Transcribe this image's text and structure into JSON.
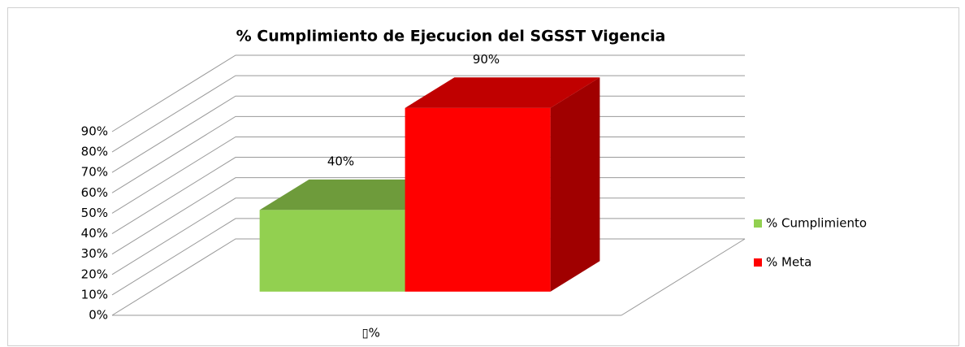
{
  "chart_data": {
    "type": "bar3d",
    "title": "% Cumplimiento de Ejecucion del SGSST Vigencia",
    "categories": [
      "▯%"
    ],
    "series": [
      {
        "name": "% Cumplimiento",
        "color": "#92d050",
        "top_color": "#6e9b3b",
        "side_color": "#5f8a30",
        "values": [
          40
        ],
        "value_labels": [
          "40%"
        ]
      },
      {
        "name": "% Meta",
        "color": "#ff0000",
        "top_color": "#c00000",
        "side_color": "#a00000",
        "values": [
          90
        ],
        "value_labels": [
          "90%"
        ]
      }
    ],
    "ylim": [
      0,
      90
    ],
    "yticks": [
      {
        "value": 0,
        "label": "0%"
      },
      {
        "value": 10,
        "label": "10%"
      },
      {
        "value": 20,
        "label": "20%"
      },
      {
        "value": 30,
        "label": "30%"
      },
      {
        "value": 40,
        "label": "40%"
      },
      {
        "value": 50,
        "label": "50%"
      },
      {
        "value": 60,
        "label": "60%"
      },
      {
        "value": 70,
        "label": "70%"
      },
      {
        "value": 80,
        "label": "80%"
      },
      {
        "value": 90,
        "label": "90%"
      }
    ],
    "grid": true,
    "legend": "right"
  }
}
